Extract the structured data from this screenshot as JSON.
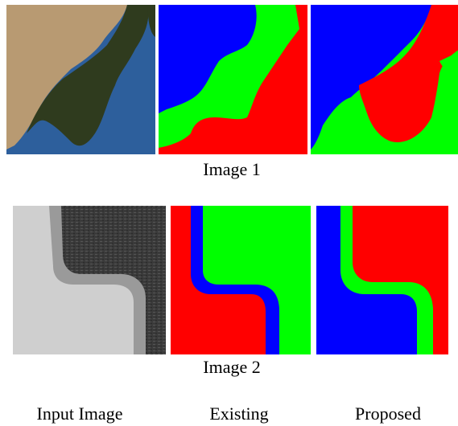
{
  "figure": {
    "rows": [
      {
        "caption": "Image 1",
        "panels": [
          {
            "kind": "input-satellite-photo",
            "colors": {
              "land": "#b89a72",
              "forest": "#2f3b1e",
              "water": "#2d5f9c"
            }
          },
          {
            "kind": "existing-segmentation",
            "colors": {
              "class_a": "#0000ff",
              "class_b": "#00ff00",
              "class_c": "#ff0000"
            }
          },
          {
            "kind": "proposed-segmentation",
            "colors": {
              "class_a": "#0000ff",
              "class_b": "#00ff00",
              "class_c": "#ff0000"
            }
          }
        ]
      },
      {
        "caption": "Image 2",
        "panels": [
          {
            "kind": "input-grayscale-texture",
            "colors": {
              "light": "#cfcfcf",
              "mid": "#9a9a9a",
              "dark": "#3a3a3a"
            }
          },
          {
            "kind": "existing-segmentation",
            "colors": {
              "class_a": "#0000ff",
              "class_b": "#00ff00",
              "class_c": "#ff0000"
            }
          },
          {
            "kind": "proposed-segmentation",
            "colors": {
              "class_a": "#0000ff",
              "class_b": "#00ff00",
              "class_c": "#ff0000"
            }
          }
        ]
      }
    ],
    "column_labels": [
      "Input Image",
      "Existing",
      "Proposed"
    ]
  }
}
